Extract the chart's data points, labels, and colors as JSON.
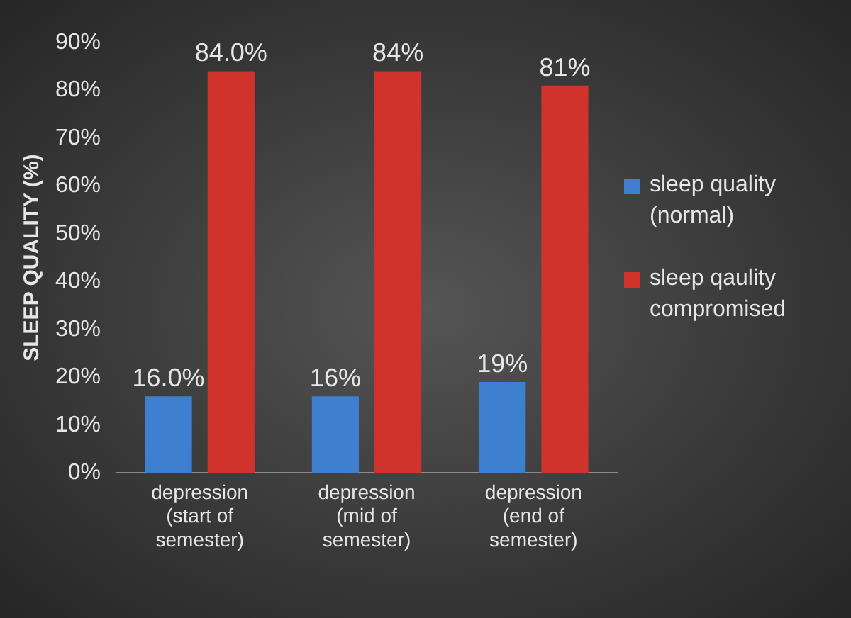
{
  "chart_data": {
    "type": "bar",
    "ylabel": "SLEEP QUALITY (%)",
    "categories": [
      "depression (start of semester)",
      "depression (mid of semester)",
      "depression (end of semester)"
    ],
    "series": [
      {
        "name": "sleep quality (normal)",
        "color": "#3f7fd0",
        "values": [
          16.0,
          16,
          19
        ],
        "value_labels": [
          "16.0%",
          "16%",
          "19%"
        ]
      },
      {
        "name": "sleep qaulity compromised",
        "color": "#d0322c",
        "values": [
          84.0,
          84,
          81
        ],
        "value_labels": [
          "84.0%",
          "84%",
          "81%"
        ]
      }
    ],
    "ylim": [
      0,
      90
    ],
    "yticks": [
      {
        "value": 0,
        "label": "0%"
      },
      {
        "value": 10,
        "label": "10%"
      },
      {
        "value": 20,
        "label": "20%"
      },
      {
        "value": 30,
        "label": "30%"
      },
      {
        "value": 40,
        "label": "40%"
      },
      {
        "value": 50,
        "label": "50%"
      },
      {
        "value": 60,
        "label": "60%"
      },
      {
        "value": 70,
        "label": "70%"
      },
      {
        "value": 80,
        "label": "80%"
      },
      {
        "value": 90,
        "label": "90%"
      }
    ],
    "grid": false,
    "legend": "right"
  }
}
